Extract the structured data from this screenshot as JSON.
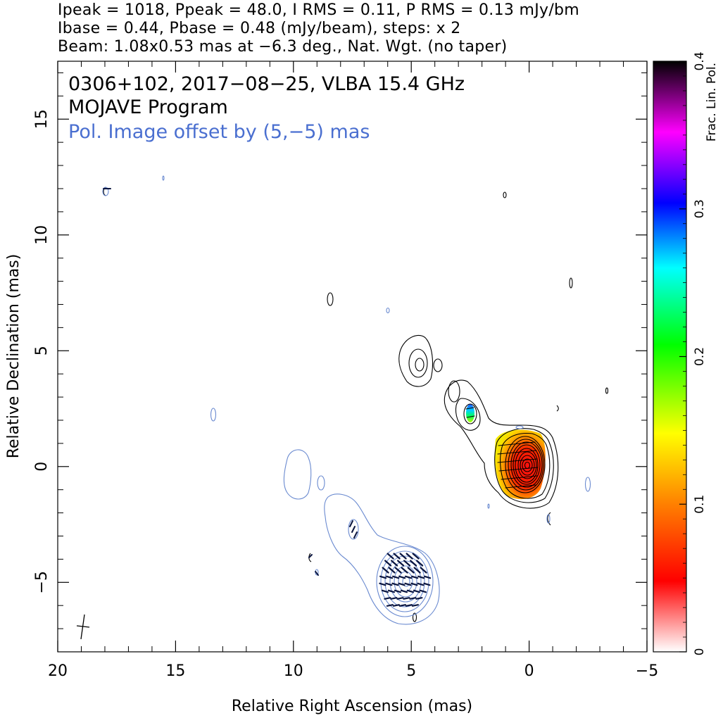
{
  "header": {
    "line1": "Ipeak = 1018, Ppeak = 48.0, I RMS = 0.11, P RMS = 0.13 mJy/bm",
    "line2": "Ibase = 0.44, Pbase = 0.48 (mJy/beam), steps: x 2",
    "line3": "Beam: 1.08x0.53 mas at −6.3 deg., Nat. Wgt. (no taper)"
  },
  "chart_data": {
    "type": "contour",
    "title_lines": [
      "0306+102, 2017−08−25, VLBA 15.4 GHz",
      "MOJAVE Program"
    ],
    "pol_note": "Pol. Image offset by (5,−5) mas",
    "xlabel": "Relative Right Ascension (mas)",
    "ylabel": "Relative Declination (mas)",
    "xlim": [
      20,
      -5
    ],
    "ylim": [
      -8,
      17.5
    ],
    "x_ticks": [
      20,
      15,
      10,
      5,
      0,
      -5
    ],
    "x_tick_labels": [
      "20",
      "15",
      "10",
      "5",
      "0",
      "−5"
    ],
    "y_ticks": [
      -5,
      0,
      5,
      10,
      15
    ],
    "y_tick_labels": [
      "−5",
      "0",
      "5",
      "10",
      "15"
    ],
    "colorbar": {
      "label": "Frac. Lin. Pol.",
      "range": [
        0,
        0.4
      ],
      "ticks": [
        0,
        0.1,
        0.2,
        0.3,
        0.4
      ],
      "tick_labels": [
        "0",
        "0.1",
        "0.2",
        "0.3",
        "0.4"
      ],
      "stops": [
        "#ffffff",
        "#ff0000",
        "#ff8000",
        "#ffff00",
        "#00ff00",
        "#00ffff",
        "#0000ff",
        "#ff00ff",
        "#000000"
      ]
    },
    "stokes_i_contour_levels_mJy": [
      0.44,
      0.88,
      1.76,
      3.52,
      7.04,
      14.08,
      28.16,
      56.32,
      112.64,
      225.28,
      450.56,
      901.12
    ],
    "stokes_i_peak_mJy": 1018,
    "pol_peak_mJy": 48.0,
    "colors": {
      "stokes_i": "#000000",
      "pol": "#6a8ad0",
      "note": "#4a6fd0",
      "evpa": "#0b1640"
    }
  }
}
